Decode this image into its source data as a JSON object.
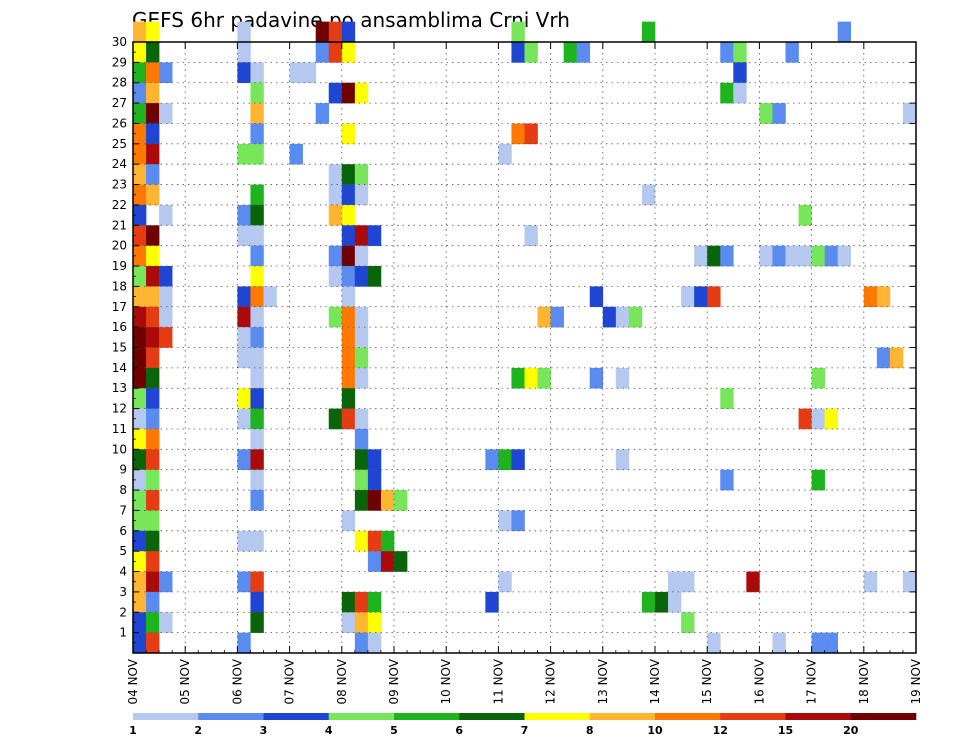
{
  "chart_data": {
    "type": "heatmap",
    "title": "GEFS 6hr padavine po ansamblima Crni Vrh",
    "x_ticks": [
      "04 NOV",
      "05 NOV",
      "06 NOV",
      "07 NOV",
      "08 NOV",
      "09 NOV",
      "10 NOV",
      "11 NOV",
      "12 NOV",
      "13 NOV",
      "14 NOV",
      "15 NOV",
      "16 NOV",
      "17 NOV",
      "18 NOV",
      "19 NOV"
    ],
    "y_ticks": [
      1,
      2,
      3,
      4,
      5,
      6,
      7,
      8,
      9,
      10,
      11,
      12,
      13,
      14,
      15,
      16,
      17,
      18,
      19,
      20,
      21,
      22,
      23,
      24,
      25,
      26,
      27,
      28,
      29,
      30
    ],
    "x_range": [
      0,
      60
    ],
    "y_range": [
      0,
      30
    ],
    "grid": true,
    "colorbar": {
      "colors": [
        "#b4c8f0",
        "#5a8cf0",
        "#1e46d2",
        "#78e65a",
        "#1eb41e",
        "#0a640a",
        "#ffff00",
        "#ffb432",
        "#ff7800",
        "#e63c14",
        "#aa0a0a",
        "#6e0000"
      ],
      "labels": [
        "1",
        "2",
        "3",
        "4",
        "5",
        "6",
        "7",
        "8",
        "10",
        "12",
        "15",
        "20"
      ]
    },
    "cells": [
      [
        0,
        30,
        8
      ],
      [
        1,
        30,
        7
      ],
      [
        8,
        30,
        1
      ],
      [
        14,
        30,
        12
      ],
      [
        15,
        30,
        10
      ],
      [
        16,
        30,
        3
      ],
      [
        29,
        30,
        4
      ],
      [
        39,
        30,
        5
      ],
      [
        54,
        30,
        2
      ],
      [
        0,
        29,
        7
      ],
      [
        1,
        29,
        6
      ],
      [
        8,
        29,
        1
      ],
      [
        14,
        29,
        2
      ],
      [
        15,
        29,
        10
      ],
      [
        16,
        29,
        7
      ],
      [
        29,
        29,
        3
      ],
      [
        30,
        29,
        4
      ],
      [
        33,
        29,
        5
      ],
      [
        34,
        29,
        2
      ],
      [
        45,
        29,
        2
      ],
      [
        46,
        29,
        4
      ],
      [
        50,
        29,
        2
      ],
      [
        0,
        28,
        5
      ],
      [
        1,
        28,
        9
      ],
      [
        2,
        28,
        2
      ],
      [
        8,
        28,
        3
      ],
      [
        9,
        28,
        1
      ],
      [
        12,
        28,
        1
      ],
      [
        13,
        28,
        1
      ],
      [
        46,
        28,
        3
      ],
      [
        0,
        27,
        2
      ],
      [
        1,
        27,
        8
      ],
      [
        9,
        27,
        4
      ],
      [
        15,
        27,
        3
      ],
      [
        16,
        27,
        12
      ],
      [
        17,
        27,
        7
      ],
      [
        45,
        27,
        5
      ],
      [
        46,
        27,
        1
      ],
      [
        0,
        26,
        5
      ],
      [
        1,
        26,
        12
      ],
      [
        2,
        26,
        1
      ],
      [
        9,
        26,
        8
      ],
      [
        14,
        26,
        2
      ],
      [
        48,
        26,
        4
      ],
      [
        49,
        26,
        2
      ],
      [
        59,
        26,
        1
      ],
      [
        0,
        25,
        9
      ],
      [
        1,
        25,
        3
      ],
      [
        9,
        25,
        2
      ],
      [
        16,
        25,
        7
      ],
      [
        29,
        25,
        9
      ],
      [
        30,
        25,
        10
      ],
      [
        0,
        24,
        9
      ],
      [
        1,
        24,
        11
      ],
      [
        8,
        24,
        4
      ],
      [
        9,
        24,
        4
      ],
      [
        12,
        24,
        2
      ],
      [
        28,
        24,
        1
      ],
      [
        0,
        23,
        8
      ],
      [
        1,
        23,
        2
      ],
      [
        15,
        23,
        1
      ],
      [
        16,
        23,
        6
      ],
      [
        17,
        23,
        4
      ],
      [
        0,
        22,
        9
      ],
      [
        1,
        22,
        8
      ],
      [
        9,
        22,
        5
      ],
      [
        15,
        22,
        1
      ],
      [
        16,
        22,
        3
      ],
      [
        17,
        22,
        1
      ],
      [
        39,
        22,
        1
      ],
      [
        0,
        21,
        3
      ],
      [
        2,
        21,
        1
      ],
      [
        8,
        21,
        2
      ],
      [
        9,
        21,
        6
      ],
      [
        15,
        21,
        8
      ],
      [
        16,
        21,
        7
      ],
      [
        51,
        21,
        4
      ],
      [
        0,
        20,
        10
      ],
      [
        1,
        20,
        12
      ],
      [
        8,
        20,
        1
      ],
      [
        9,
        20,
        1
      ],
      [
        16,
        20,
        3
      ],
      [
        17,
        20,
        11
      ],
      [
        18,
        20,
        3
      ],
      [
        30,
        20,
        1
      ],
      [
        0,
        19,
        9
      ],
      [
        1,
        19,
        7
      ],
      [
        9,
        19,
        2
      ],
      [
        15,
        19,
        2
      ],
      [
        16,
        19,
        12
      ],
      [
        17,
        19,
        1
      ],
      [
        43,
        19,
        1
      ],
      [
        44,
        19,
        6
      ],
      [
        45,
        19,
        2
      ],
      [
        48,
        19,
        1
      ],
      [
        49,
        19,
        2
      ],
      [
        50,
        19,
        1
      ],
      [
        51,
        19,
        1
      ],
      [
        52,
        19,
        4
      ],
      [
        53,
        19,
        2
      ],
      [
        54,
        19,
        1
      ],
      [
        0,
        18,
        4
      ],
      [
        1,
        18,
        11
      ],
      [
        2,
        18,
        3
      ],
      [
        9,
        18,
        7
      ],
      [
        15,
        18,
        1
      ],
      [
        16,
        18,
        2
      ],
      [
        17,
        18,
        3
      ],
      [
        18,
        18,
        6
      ],
      [
        0,
        17,
        8
      ],
      [
        1,
        17,
        8
      ],
      [
        2,
        17,
        1
      ],
      [
        8,
        17,
        3
      ],
      [
        9,
        17,
        9
      ],
      [
        10,
        17,
        1
      ],
      [
        16,
        17,
        1
      ],
      [
        35,
        17,
        3
      ],
      [
        42,
        17,
        1
      ],
      [
        43,
        17,
        3
      ],
      [
        44,
        17,
        10
      ],
      [
        56,
        17,
        9
      ],
      [
        57,
        17,
        8
      ],
      [
        0,
        16,
        11
      ],
      [
        1,
        16,
        10
      ],
      [
        2,
        16,
        1
      ],
      [
        8,
        16,
        11
      ],
      [
        9,
        16,
        1
      ],
      [
        15,
        16,
        4
      ],
      [
        16,
        16,
        9
      ],
      [
        17,
        16,
        1
      ],
      [
        31,
        16,
        8
      ],
      [
        32,
        16,
        2
      ],
      [
        36,
        16,
        3
      ],
      [
        37,
        16,
        1
      ],
      [
        38,
        16,
        4
      ],
      [
        0,
        15,
        12
      ],
      [
        1,
        15,
        11
      ],
      [
        2,
        15,
        10
      ],
      [
        8,
        15,
        1
      ],
      [
        9,
        15,
        2
      ],
      [
        16,
        15,
        9
      ],
      [
        17,
        15,
        1
      ],
      [
        0,
        14,
        12
      ],
      [
        1,
        14,
        10
      ],
      [
        8,
        14,
        1
      ],
      [
        9,
        14,
        1
      ],
      [
        16,
        14,
        9
      ],
      [
        17,
        14,
        4
      ],
      [
        57,
        14,
        2
      ],
      [
        58,
        14,
        8
      ],
      [
        0,
        13,
        12
      ],
      [
        1,
        13,
        6
      ],
      [
        9,
        13,
        1
      ],
      [
        16,
        13,
        9
      ],
      [
        17,
        13,
        1
      ],
      [
        29,
        13,
        5
      ],
      [
        30,
        13,
        7
      ],
      [
        31,
        13,
        4
      ],
      [
        35,
        13,
        2
      ],
      [
        37,
        13,
        1
      ],
      [
        52,
        13,
        4
      ],
      [
        0,
        12,
        4
      ],
      [
        1,
        12,
        3
      ],
      [
        8,
        12,
        7
      ],
      [
        9,
        12,
        3
      ],
      [
        16,
        12,
        6
      ],
      [
        45,
        12,
        4
      ],
      [
        0,
        11,
        1
      ],
      [
        1,
        11,
        2
      ],
      [
        8,
        11,
        1
      ],
      [
        9,
        11,
        5
      ],
      [
        15,
        11,
        6
      ],
      [
        16,
        11,
        10
      ],
      [
        17,
        11,
        1
      ],
      [
        51,
        11,
        10
      ],
      [
        52,
        11,
        1
      ],
      [
        53,
        11,
        7
      ],
      [
        0,
        10,
        7
      ],
      [
        1,
        10,
        9
      ],
      [
        9,
        10,
        1
      ],
      [
        17,
        10,
        2
      ],
      [
        0,
        9,
        6
      ],
      [
        1,
        9,
        10
      ],
      [
        8,
        9,
        2
      ],
      [
        9,
        9,
        11
      ],
      [
        17,
        9,
        6
      ],
      [
        18,
        9,
        3
      ],
      [
        27,
        9,
        2
      ],
      [
        28,
        9,
        5
      ],
      [
        29,
        9,
        3
      ],
      [
        37,
        9,
        1
      ],
      [
        0,
        8,
        1
      ],
      [
        1,
        8,
        4
      ],
      [
        9,
        8,
        1
      ],
      [
        17,
        8,
        4
      ],
      [
        18,
        8,
        3
      ],
      [
        45,
        8,
        2
      ],
      [
        52,
        8,
        5
      ],
      [
        0,
        7,
        4
      ],
      [
        1,
        7,
        10
      ],
      [
        9,
        7,
        2
      ],
      [
        17,
        7,
        6
      ],
      [
        18,
        7,
        12
      ],
      [
        19,
        7,
        8
      ],
      [
        20,
        7,
        4
      ],
      [
        0,
        6,
        4
      ],
      [
        1,
        6,
        4
      ],
      [
        16,
        6,
        1
      ],
      [
        28,
        6,
        1
      ],
      [
        29,
        6,
        2
      ],
      [
        0,
        5,
        3
      ],
      [
        1,
        5,
        6
      ],
      [
        8,
        5,
        1
      ],
      [
        9,
        5,
        1
      ],
      [
        17,
        5,
        7
      ],
      [
        18,
        5,
        10
      ],
      [
        19,
        5,
        5
      ],
      [
        0,
        4,
        7
      ],
      [
        1,
        4,
        10
      ],
      [
        18,
        4,
        2
      ],
      [
        19,
        4,
        11
      ],
      [
        20,
        4,
        6
      ],
      [
        0,
        3,
        8
      ],
      [
        1,
        3,
        11
      ],
      [
        2,
        3,
        2
      ],
      [
        8,
        3,
        2
      ],
      [
        9,
        3,
        10
      ],
      [
        28,
        3,
        1
      ],
      [
        41,
        3,
        1
      ],
      [
        42,
        3,
        1
      ],
      [
        47,
        3,
        11
      ],
      [
        56,
        3,
        1
      ],
      [
        59,
        3,
        1
      ],
      [
        0,
        2,
        8
      ],
      [
        1,
        2,
        2
      ],
      [
        9,
        2,
        3
      ],
      [
        16,
        2,
        6
      ],
      [
        17,
        2,
        10
      ],
      [
        18,
        2,
        5
      ],
      [
        27,
        2,
        3
      ],
      [
        39,
        2,
        5
      ],
      [
        40,
        2,
        6
      ],
      [
        41,
        2,
        1
      ],
      [
        0,
        1,
        3
      ],
      [
        1,
        1,
        5
      ],
      [
        2,
        1,
        1
      ],
      [
        9,
        1,
        6
      ],
      [
        16,
        1,
        1
      ],
      [
        17,
        1,
        8
      ],
      [
        18,
        1,
        7
      ],
      [
        42,
        1,
        4
      ],
      [
        0,
        0,
        3
      ],
      [
        1,
        0,
        10
      ],
      [
        8,
        0,
        2
      ],
      [
        17,
        0,
        2
      ],
      [
        18,
        0,
        1
      ],
      [
        44,
        0,
        1
      ],
      [
        49,
        0,
        1
      ],
      [
        52,
        0,
        2
      ],
      [
        53,
        0,
        2
      ]
    ]
  }
}
